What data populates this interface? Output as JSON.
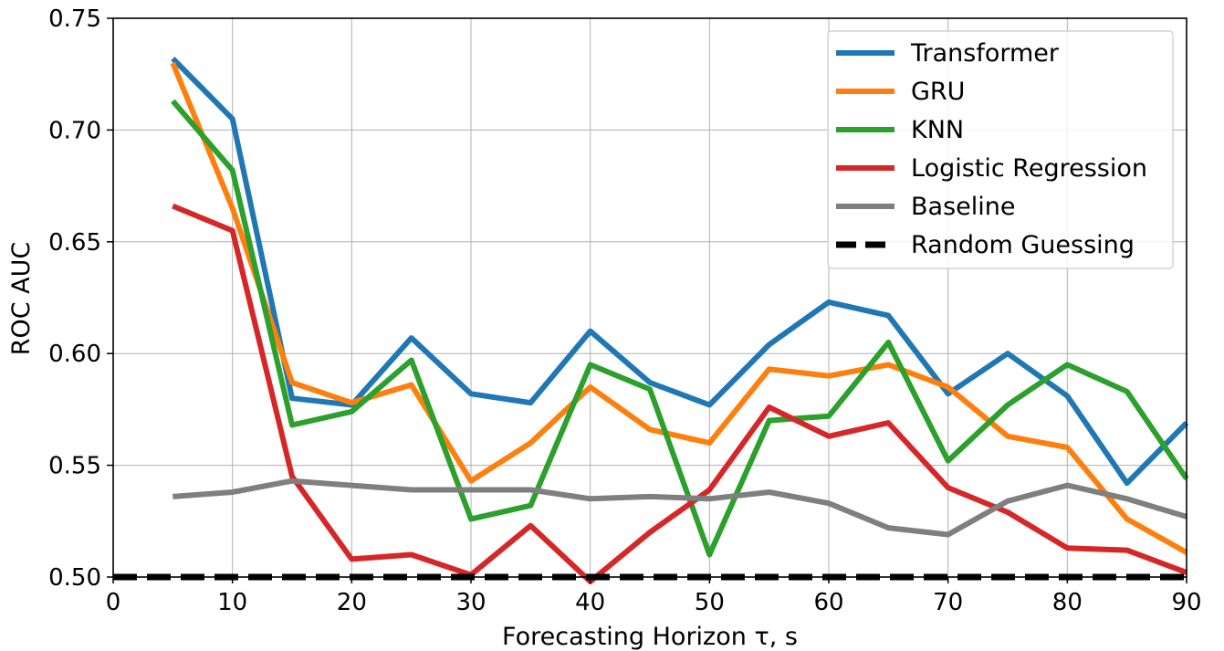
{
  "chart_data": {
    "type": "line",
    "xlabel": "Forecasting Horizon τ, s",
    "ylabel": "ROC AUC",
    "xlim": [
      0,
      90
    ],
    "ylim": [
      0.5,
      0.75
    ],
    "xticks": [
      0,
      10,
      20,
      30,
      40,
      50,
      60,
      70,
      80,
      90
    ],
    "yticks": [
      0.5,
      0.55,
      0.6,
      0.65,
      0.7,
      0.75
    ],
    "ytick_labels": [
      "0.50",
      "0.55",
      "0.60",
      "0.65",
      "0.70",
      "0.75"
    ],
    "grid": true,
    "legend_position": "top-right",
    "x": [
      5,
      10,
      15,
      20,
      25,
      30,
      35,
      40,
      45,
      50,
      55,
      60,
      65,
      70,
      75,
      80,
      85,
      90
    ],
    "series": [
      {
        "name": "Transformer",
        "color": "#1f77b4",
        "style": "solid",
        "values": [
          0.732,
          0.705,
          0.58,
          0.577,
          0.607,
          0.582,
          0.578,
          0.61,
          0.587,
          0.577,
          0.604,
          0.623,
          0.617,
          0.582,
          0.6,
          0.581,
          0.542,
          0.569
        ]
      },
      {
        "name": "GRU",
        "color": "#ff7f0e",
        "style": "solid",
        "values": [
          0.73,
          0.665,
          0.587,
          0.578,
          0.586,
          0.543,
          0.56,
          0.585,
          0.566,
          0.56,
          0.593,
          0.59,
          0.595,
          0.585,
          0.563,
          0.558,
          0.526,
          0.511
        ]
      },
      {
        "name": "KNN",
        "color": "#2ca02c",
        "style": "solid",
        "values": [
          0.713,
          0.682,
          0.568,
          0.574,
          0.597,
          0.526,
          0.532,
          0.595,
          0.584,
          0.51,
          0.57,
          0.572,
          0.605,
          0.552,
          0.577,
          0.595,
          0.583,
          0.544
        ]
      },
      {
        "name": "Logistic Regression",
        "color": "#d62728",
        "style": "solid",
        "values": [
          0.666,
          0.655,
          0.545,
          0.508,
          0.51,
          0.501,
          0.523,
          0.498,
          0.52,
          0.539,
          0.576,
          0.563,
          0.569,
          0.54,
          0.529,
          0.513,
          0.512,
          0.502
        ]
      },
      {
        "name": "Baseline",
        "color": "#7f7f7f",
        "style": "solid",
        "values": [
          0.536,
          0.538,
          0.543,
          0.541,
          0.539,
          0.539,
          0.539,
          0.535,
          0.536,
          0.535,
          0.538,
          0.533,
          0.522,
          0.519,
          0.534,
          0.541,
          0.535,
          0.527
        ]
      },
      {
        "name": "Random Guessing",
        "color": "#000000",
        "style": "dashed",
        "x_values": [
          0,
          90
        ],
        "values": [
          0.5,
          0.5
        ]
      }
    ]
  }
}
